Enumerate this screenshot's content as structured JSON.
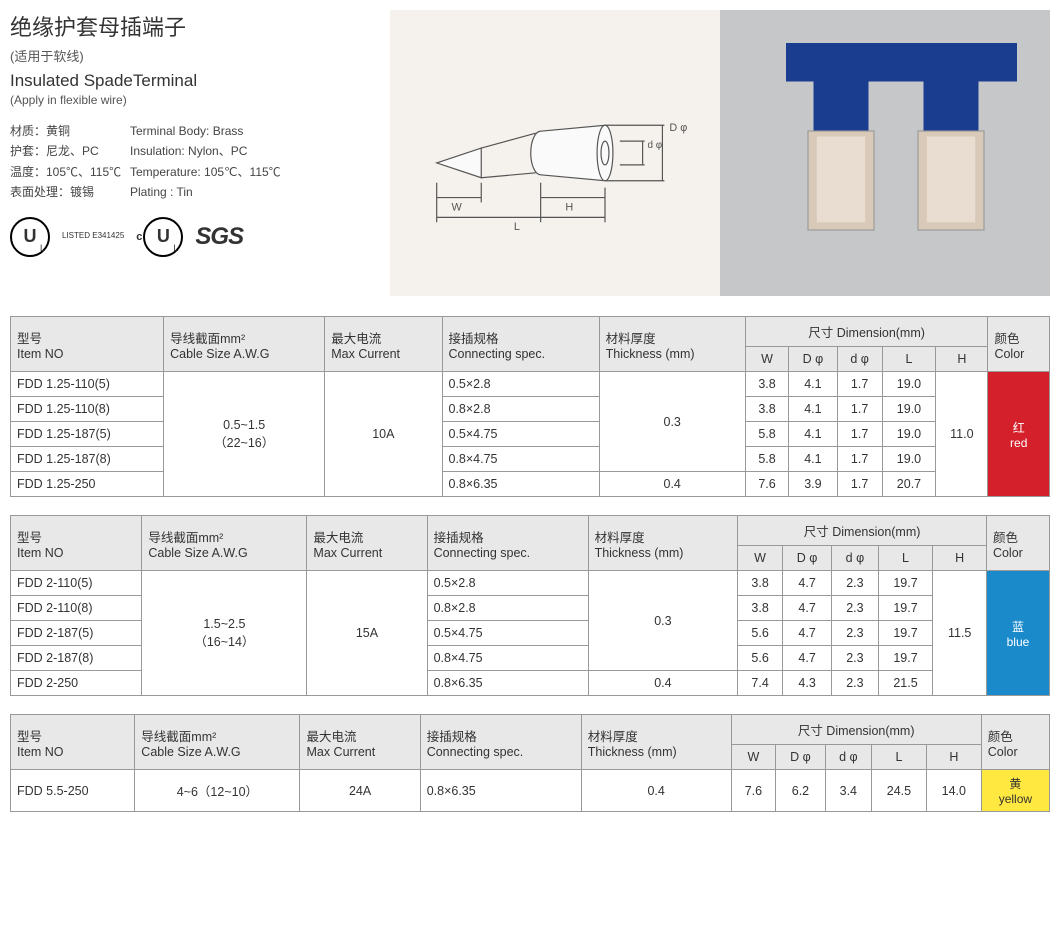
{
  "header": {
    "title_cn": "绝缘护套母插端子",
    "subtitle_cn": "(适用于软线)",
    "title_en": "Insulated SpadeTerminal",
    "subtitle_en": "(Apply in flexible wire)",
    "specs": [
      {
        "cn": "材质：黄铜",
        "en": "Terminal Body: Brass"
      },
      {
        "cn": "护套：尼龙、PC",
        "en": "Insulation: Nylon、PC"
      },
      {
        "cn": "温度：105℃、115℃",
        "en": "Temperature: 105℃、115℃"
      },
      {
        "cn": "表面处理：镀锡",
        "en": "Plating : Tin"
      }
    ],
    "cert_listed": "LISTED\nE341425"
  },
  "diagram_labels": {
    "W": "W",
    "L": "L",
    "H": "H",
    "dphi": "d φ",
    "Dphi": "D φ"
  },
  "columns": {
    "item_no_cn": "型号",
    "item_no_en": "Item NO",
    "cable_cn": "导线截面mm²",
    "cable_en": "Cable Size  A.W.G",
    "max_current_cn": "最大电流",
    "max_current_en": "Max Current",
    "conn_cn": "接插规格",
    "conn_en": "Connecting spec.",
    "thick_cn": "材料厚度",
    "thick_en": "Thickness (mm)",
    "dim_cn": "尺寸 Dimension(mm)",
    "W": "W",
    "Dphi": "D φ",
    "dphi": "d φ",
    "L": "L",
    "H": "H",
    "color_cn": "颜色",
    "color_en": "Color"
  },
  "tables": [
    {
      "cable": "0.5~1.5\n（22~16）",
      "max_current": "10A",
      "H": "11.0",
      "color_cn": "红",
      "color_en": "red",
      "color_class": "color-red",
      "rows": [
        {
          "item": "FDD 1.25-110(5)",
          "conn": "0.5×2.8",
          "thick": "0.3",
          "W": "3.8",
          "Dphi": "4.1",
          "dphi": "1.7",
          "L": "19.0"
        },
        {
          "item": "FDD 1.25-110(8)",
          "conn": "0.8×2.8",
          "thick": "",
          "W": "3.8",
          "Dphi": "4.1",
          "dphi": "1.7",
          "L": "19.0"
        },
        {
          "item": "FDD 1.25-187(5)",
          "conn": "0.5×4.75",
          "thick": "",
          "W": "5.8",
          "Dphi": "4.1",
          "dphi": "1.7",
          "L": "19.0"
        },
        {
          "item": "FDD 1.25-187(8)",
          "conn": "0.8×4.75",
          "thick": "",
          "W": "5.8",
          "Dphi": "4.1",
          "dphi": "1.7",
          "L": "19.0"
        },
        {
          "item": "FDD 1.25-250",
          "conn": "0.8×6.35",
          "thick": "0.4",
          "W": "7.6",
          "Dphi": "3.9",
          "dphi": "1.7",
          "L": "20.7"
        }
      ],
      "thick_span1": 4
    },
    {
      "cable": "1.5~2.5\n（16~14）",
      "max_current": "15A",
      "H": "11.5",
      "color_cn": "蓝",
      "color_en": "blue",
      "color_class": "color-blue",
      "rows": [
        {
          "item": "FDD 2-110(5)",
          "conn": "0.5×2.8",
          "thick": "0.3",
          "W": "3.8",
          "Dphi": "4.7",
          "dphi": "2.3",
          "L": "19.7"
        },
        {
          "item": "FDD 2-110(8)",
          "conn": "0.8×2.8",
          "thick": "",
          "W": "3.8",
          "Dphi": "4.7",
          "dphi": "2.3",
          "L": "19.7"
        },
        {
          "item": "FDD 2-187(5)",
          "conn": "0.5×4.75",
          "thick": "",
          "W": "5.6",
          "Dphi": "4.7",
          "dphi": "2.3",
          "L": "19.7"
        },
        {
          "item": "FDD 2-187(8)",
          "conn": "0.8×4.75",
          "thick": "",
          "W": "5.6",
          "Dphi": "4.7",
          "dphi": "2.3",
          "L": "19.7"
        },
        {
          "item": "FDD 2-250",
          "conn": "0.8×6.35",
          "thick": "0.4",
          "W": "7.4",
          "Dphi": "4.3",
          "dphi": "2.3",
          "L": "21.5"
        }
      ],
      "thick_span1": 4
    },
    {
      "cable": "4~6（12~10）",
      "max_current": "24A",
      "H": "14.0",
      "color_cn": "黄",
      "color_en": "yellow",
      "color_class": "color-yellow",
      "rows": [
        {
          "item": "FDD 5.5-250",
          "conn": "0.8×6.35",
          "thick": "0.4",
          "W": "7.6",
          "Dphi": "6.2",
          "dphi": "3.4",
          "L": "24.5"
        }
      ],
      "thick_span1": 1
    }
  ]
}
